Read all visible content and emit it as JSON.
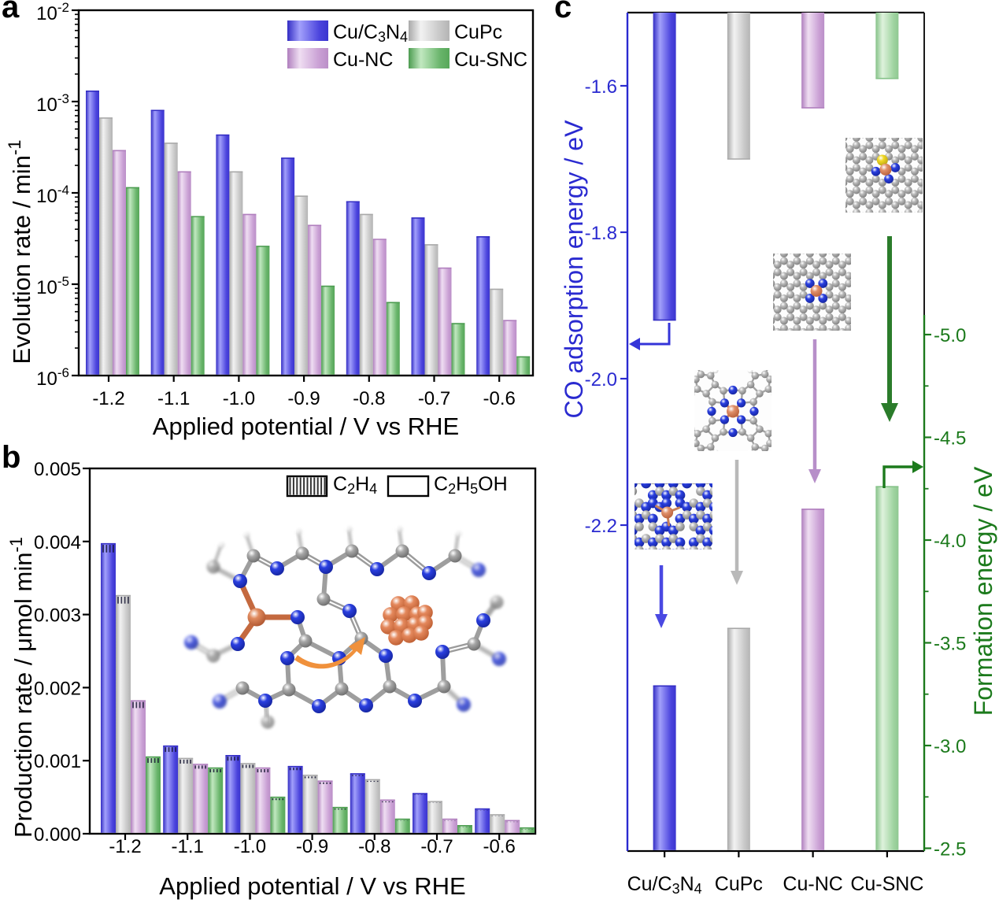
{
  "figure": {
    "background": "#ffffff",
    "panel_letters": {
      "a": "a",
      "b": "b",
      "c": "c"
    }
  },
  "chart_data": [
    {
      "panel": "a",
      "type": "bar",
      "title": "",
      "xlabel": "Applied potential / V vs RHE",
      "ylabel": "Evolution rate / min^-1^",
      "yscale": "log",
      "ylim": [
        1e-06,
        0.01
      ],
      "yticks": [
        0.01,
        0.001,
        0.0001,
        1e-05,
        1e-06
      ],
      "ytick_labels": [
        "10^-2^",
        "10^-3^",
        "10^-4^",
        "10^-5^",
        "10^-6^"
      ],
      "grid": false,
      "legend_position": "top-right inside",
      "categories": [
        "-1.2",
        "-1.1",
        "-1.0",
        "-0.9",
        "-0.8",
        "-0.7",
        "-0.6"
      ],
      "series": [
        {
          "name": "Cu/C_3_N_4_",
          "color_key": "blue",
          "values": [
            0.0013,
            0.0008,
            0.00043,
            0.00024,
            8e-05,
            5.3e-05,
            3.3e-05
          ]
        },
        {
          "name": "CuPc",
          "color_key": "gray",
          "values": [
            0.00066,
            0.00035,
            0.00017,
            9.2e-05,
            5.8e-05,
            2.7e-05,
            8.8e-06
          ]
        },
        {
          "name": "Cu-NC",
          "color_key": "purple",
          "values": [
            0.00029,
            0.00017,
            5.8e-05,
            4.4e-05,
            3.1e-05,
            1.5e-05,
            4e-06
          ]
        },
        {
          "name": "Cu-SNC",
          "color_key": "green",
          "values": [
            0.000114,
            5.5e-05,
            2.6e-05,
            9.5e-06,
            6.3e-06,
            3.7e-06,
            1.6e-06
          ]
        }
      ]
    },
    {
      "panel": "b",
      "type": "stacked-bar",
      "title": "",
      "xlabel": "Applied potential / V vs RHE",
      "ylabel": "Production rate / μmol min^-1^",
      "yscale": "linear",
      "ylim": [
        0,
        0.005
      ],
      "yticks": [
        0.0,
        0.001,
        0.002,
        0.003,
        0.004,
        0.005
      ],
      "ytick_labels": [
        "0.000",
        "0.001",
        "0.002",
        "0.003",
        "0.004",
        "0.005"
      ],
      "grid": false,
      "legend": [
        {
          "label": "C_2_H_4_",
          "swatch": "hatched"
        },
        {
          "label": "C_2_H_5_OH",
          "swatch": "open"
        }
      ],
      "categories": [
        "-1.2",
        "-1.1",
        "-1.0",
        "-0.9",
        "-0.8",
        "-0.7",
        "-0.6"
      ],
      "series": [
        {
          "name": "Cu/C_3_N_4_",
          "color_key": "blue",
          "c2h5oh": [
            0.00385,
            0.00112,
            0.001,
            0.00087,
            0.00079,
            0.00053,
            0.00032
          ],
          "c2h4": [
            0.00012,
            8e-05,
            7e-05,
            5e-05,
            3e-05,
            2e-05,
            2e-05
          ]
        },
        {
          "name": "CuPc",
          "color_key": "gray",
          "c2h5oh": [
            0.00315,
            0.00096,
            0.0009,
            0.00076,
            0.00071,
            0.00042,
            0.00024
          ],
          "c2h4": [
            0.00011,
            7e-05,
            6e-05,
            4e-05,
            3e-05,
            2e-05,
            2e-05
          ]
        },
        {
          "name": "Cu-NC",
          "color_key": "purple",
          "c2h5oh": [
            0.00172,
            0.00089,
            0.00084,
            0.00068,
            0.00043,
            0.00018,
            0.00016
          ],
          "c2h4": [
            0.0001,
            6e-05,
            6e-05,
            4e-05,
            3e-05,
            2e-05,
            2e-05
          ]
        },
        {
          "name": "Cu-SNC",
          "color_key": "green",
          "c2h5oh": [
            0.00097,
            0.00084,
            0.00046,
            0.00033,
            0.00018,
            9e-05,
            6e-05
          ],
          "c2h4": [
            8e-05,
            6e-05,
            4e-05,
            3e-05,
            2e-05,
            2e-05,
            2e-05
          ]
        }
      ],
      "inset": {
        "name": "Cu single atom on C3N4 with Cu cluster",
        "arrow_color": "#f0913c"
      }
    },
    {
      "panel": "c",
      "type": "dual-axis-bar",
      "categories": [
        "Cu/C_3_N_4_",
        "CuPc",
        "Cu-NC",
        "Cu-SNC"
      ],
      "left_axis": {
        "label": "CO adsorption energy / eV",
        "color": "#2a2ad0",
        "ticks": [
          -1.6,
          -1.8,
          -2.0,
          -2.2
        ],
        "tick_labels": [
          "-1.6",
          "-1.8",
          "-2.0",
          "-2.2"
        ],
        "range_top": -1.5,
        "values": [
          -1.92,
          -1.7,
          -1.63,
          -1.59
        ],
        "bars_hang_from": "top"
      },
      "right_axis": {
        "label": "Formation energy / eV",
        "color": "#1c7a1c",
        "ticks": [
          -5.0,
          -4.5,
          -4.0,
          -3.5,
          -3.0,
          -2.5
        ],
        "tick_labels": [
          "-5.0",
          "-4.5",
          "-4.0",
          "-3.5",
          "-3.0",
          "-2.5"
        ],
        "minor_step": 0.25,
        "values": [
          -3.29,
          -3.57,
          -4.15,
          -4.26
        ],
        "bars_rise_from": "bottom"
      },
      "bar_color_keys": [
        "blue",
        "gray",
        "purple",
        "green_light"
      ],
      "insets": [
        {
          "name": "Cu/C3N4 structure",
          "arrow_color": "#4a49e2"
        },
        {
          "name": "CuPc structure",
          "arrow_color": "#b9b9b9"
        },
        {
          "name": "Cu-NC structure",
          "arrow_color": "#b78fc9"
        },
        {
          "name": "Cu-SNC structure",
          "arrow_color": "#2b7c2b"
        }
      ]
    }
  ],
  "colors": {
    "blue": {
      "edge": "#332dc4",
      "light": "#a2a0fb",
      "mid": "#4b44dd",
      "edge2": "#3b35cf"
    },
    "gray": {
      "edge": "#a9a9a9",
      "light": "#f2f2f2",
      "mid": "#c6c6c6",
      "edge2": "#b4b4b4"
    },
    "purple": {
      "edge": "#b07fbe",
      "light": "#efdef2",
      "mid": "#c99fd4",
      "edge2": "#bb8fc8"
    },
    "green": {
      "edge": "#4c9c50",
      "light": "#c1e8c0",
      "mid": "#68b46a",
      "edge2": "#57a75a"
    },
    "green_light": {
      "edge": "#85c288",
      "light": "#def2dc",
      "mid": "#a0d4a1",
      "edge2": "#8fc892"
    },
    "atom_N": "#2438cf",
    "atom_C": "#909090",
    "atom_H": "#f2f2f2",
    "atom_Cu": "#d4714a",
    "atom_S": "#e8d222",
    "axis_black": "#000000"
  }
}
